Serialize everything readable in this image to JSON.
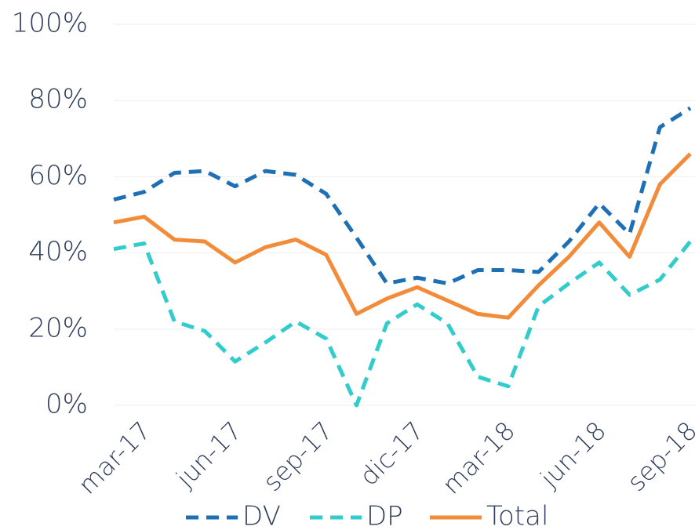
{
  "chart_data": {
    "type": "line",
    "categories": [
      null,
      "mar-17",
      null,
      null,
      "jun-17",
      null,
      null,
      "sep-17",
      null,
      null,
      "dic-17",
      null,
      null,
      "mar-18",
      null,
      null,
      "jun-18",
      null,
      null,
      "sep-18"
    ],
    "series": [
      {
        "name": "DV",
        "color": "#1f6fb4",
        "dashed": true,
        "values": [
          54,
          56,
          61,
          61.5,
          57.5,
          61.5,
          60.5,
          55.5,
          44,
          32,
          33.5,
          32,
          35.5,
          35.5,
          35,
          43,
          53,
          45,
          73,
          78
        ]
      },
      {
        "name": "DP",
        "color": "#33cccc",
        "dashed": true,
        "values": [
          41,
          42.5,
          22,
          19.5,
          11.5,
          16.5,
          22,
          17.5,
          0,
          21.5,
          26.5,
          21.5,
          7.5,
          5,
          26,
          32,
          37.5,
          29,
          33,
          43
        ]
      },
      {
        "name": "Total",
        "color": "#f28c3a",
        "dashed": false,
        "values": [
          48,
          49.5,
          43.5,
          43,
          37.5,
          41.5,
          43.5,
          39.5,
          24,
          28,
          31,
          27.5,
          24,
          23,
          31.5,
          39,
          48,
          39,
          58,
          66
        ]
      }
    ],
    "ylim": [
      0,
      100
    ],
    "yticks": [
      {
        "value": 0,
        "label": "0%"
      },
      {
        "value": 20,
        "label": "20%"
      },
      {
        "value": 40,
        "label": "40%"
      },
      {
        "value": 60,
        "label": "60%"
      },
      {
        "value": 80,
        "label": "80%"
      },
      {
        "value": 100,
        "label": "100%"
      }
    ],
    "grid": true,
    "legend": "bottom"
  }
}
